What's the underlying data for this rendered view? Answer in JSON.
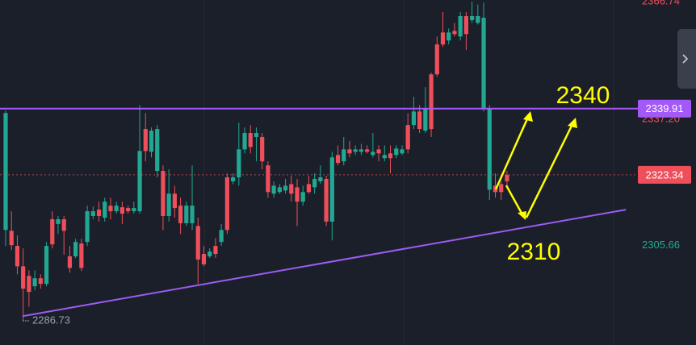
{
  "chart_data": {
    "type": "candlestick",
    "up_color": "#ef4f5b",
    "down_color": "#22a892",
    "ylim": [
      2280.68,
      2367.14
    ],
    "candles": [
      [
        2338.8,
        2339.4,
        2305.5,
        2309.5
      ],
      [
        2305.7,
        2314.2,
        2304.5,
        2309.3
      ],
      [
        2300.4,
        2308.1,
        2298.4,
        2305.5
      ],
      [
        2294.8,
        2304.9,
        2286.73,
        2300.4
      ],
      [
        2294.0,
        2299.4,
        2290.3,
        2298.0
      ],
      [
        2297.4,
        2299.4,
        2294.4,
        2295.4
      ],
      [
        2296.0,
        2298.4,
        2294.8,
        2297.4
      ],
      [
        2305.5,
        2306.5,
        2295.4,
        2296.0
      ],
      [
        2305.9,
        2314.2,
        2304.9,
        2312.2
      ],
      [
        2312.2,
        2313.0,
        2308.5,
        2311.0
      ],
      [
        2309.3,
        2313.0,
        2303.3,
        2312.2
      ],
      [
        2300.0,
        2305.5,
        2298.8,
        2302.9
      ],
      [
        2306.5,
        2307.3,
        2302.5,
        2302.9
      ],
      [
        2300.0,
        2307.3,
        2299.2,
        2306.1
      ],
      [
        2314.2,
        2315.6,
        2305.5,
        2306.5
      ],
      [
        2314.2,
        2315.4,
        2312.2,
        2313.0
      ],
      [
        2313.0,
        2316.6,
        2311.6,
        2314.6
      ],
      [
        2316.6,
        2317.6,
        2311.6,
        2312.6
      ],
      [
        2314.2,
        2317.6,
        2312.2,
        2315.6
      ],
      [
        2315.6,
        2316.6,
        2313.6,
        2314.2
      ],
      [
        2313.6,
        2316.6,
        2311.0,
        2315.2
      ],
      [
        2314.2,
        2315.6,
        2313.6,
        2315.0
      ],
      [
        2315.0,
        2316.6,
        2313.6,
        2314.2
      ],
      [
        2329.3,
        2340.8,
        2313.6,
        2314.2
      ],
      [
        2329.3,
        2338.8,
        2326.7,
        2334.8
      ],
      [
        2334.4,
        2335.2,
        2327.7,
        2329.1
      ],
      [
        2334.8,
        2335.8,
        2322.7,
        2324.3
      ],
      [
        2313.0,
        2325.7,
        2309.5,
        2324.3
      ],
      [
        2318.6,
        2324.7,
        2311.6,
        2313.0
      ],
      [
        2315.0,
        2320.6,
        2312.6,
        2318.6
      ],
      [
        2311.2,
        2317.6,
        2308.5,
        2315.6
      ],
      [
        2315.6,
        2316.6,
        2310.5,
        2311.2
      ],
      [
        2315.6,
        2325.7,
        2309.5,
        2311.2
      ],
      [
        2302.1,
        2312.6,
        2296.0,
        2310.5
      ],
      [
        2300.9,
        2305.5,
        2300.4,
        2303.5
      ],
      [
        2304.1,
        2304.9,
        2302.5,
        2302.9
      ],
      [
        2303.5,
        2307.5,
        2302.5,
        2305.5
      ],
      [
        2309.5,
        2311.0,
        2305.5,
        2306.5
      ],
      [
        2309.5,
        2323.7,
        2308.5,
        2322.7
      ],
      [
        2322.7,
        2323.7,
        2321.0,
        2321.7
      ],
      [
        2329.7,
        2336.4,
        2320.6,
        2322.7
      ],
      [
        2333.8,
        2335.2,
        2328.7,
        2329.7
      ],
      [
        2330.3,
        2335.8,
        2328.7,
        2333.8
      ],
      [
        2333.8,
        2335.2,
        2326.7,
        2332.8
      ],
      [
        2326.7,
        2333.8,
        2324.7,
        2332.8
      ],
      [
        2319.0,
        2326.7,
        2317.6,
        2325.7
      ],
      [
        2320.6,
        2321.7,
        2317.6,
        2318.6
      ],
      [
        2320.2,
        2321.0,
        2318.6,
        2319.0
      ],
      [
        2320.6,
        2322.3,
        2318.6,
        2319.4
      ],
      [
        2318.6,
        2323.1,
        2316.6,
        2321.0
      ],
      [
        2316.6,
        2322.3,
        2310.5,
        2320.2
      ],
      [
        2319.0,
        2320.6,
        2315.6,
        2316.6
      ],
      [
        2319.0,
        2323.1,
        2318.6,
        2321.0
      ],
      [
        2322.3,
        2323.7,
        2318.6,
        2320.2
      ],
      [
        2322.7,
        2325.7,
        2321.0,
        2321.7
      ],
      [
        2311.6,
        2323.1,
        2310.5,
        2322.3
      ],
      [
        2327.7,
        2329.1,
        2306.9,
        2311.6
      ],
      [
        2326.3,
        2330.7,
        2325.7,
        2328.3
      ],
      [
        2329.7,
        2332.8,
        2325.7,
        2326.7
      ],
      [
        2328.7,
        2331.8,
        2327.7,
        2329.7
      ],
      [
        2329.7,
        2330.7,
        2328.3,
        2329.1
      ],
      [
        2329.7,
        2331.1,
        2328.3,
        2329.1
      ],
      [
        2329.1,
        2330.7,
        2328.7,
        2329.7
      ],
      [
        2329.1,
        2333.8,
        2327.7,
        2328.3
      ],
      [
        2328.7,
        2330.7,
        2326.7,
        2329.7
      ],
      [
        2328.3,
        2330.7,
        2326.7,
        2327.5
      ],
      [
        2327.5,
        2330.7,
        2323.7,
        2328.7
      ],
      [
        2329.9,
        2330.7,
        2327.5,
        2328.3
      ],
      [
        2329.7,
        2330.7,
        2328.3,
        2328.7
      ],
      [
        2329.7,
        2338.8,
        2328.7,
        2335.8
      ],
      [
        2339.2,
        2342.9,
        2334.8,
        2335.8
      ],
      [
        2334.8,
        2340.8,
        2333.8,
        2339.2
      ],
      [
        2339.8,
        2345.3,
        2333.8,
        2334.4
      ],
      [
        2334.8,
        2348.9,
        2332.8,
        2348.5
      ],
      [
        2348.5,
        2358.0,
        2347.9,
        2356.0
      ],
      [
        2356.0,
        2364.1,
        2355.4,
        2359.0
      ],
      [
        2359.0,
        2360.0,
        2356.0,
        2357.0
      ],
      [
        2358.6,
        2361.4,
        2358.0,
        2359.4
      ],
      [
        2363.1,
        2364.1,
        2357.0,
        2358.0
      ],
      [
        2358.6,
        2364.1,
        2354.6,
        2363.1
      ],
      [
        2363.1,
        2366.74,
        2361.4,
        2362.1
      ],
      [
        2363.1,
        2366.0,
        2361.0,
        2361.4
      ],
      [
        2362.7,
        2366.5,
        2339.2,
        2339.8
      ],
      [
        2339.8,
        2340.8,
        2317.0,
        2319.6
      ],
      [
        2319.0,
        2323.7,
        2317.6,
        2320.6
      ],
      [
        2319.0,
        2321.7,
        2317.0,
        2321.0
      ],
      [
        2321.7,
        2324.3,
        2320.6,
        2323.34
      ]
    ],
    "level_line": {
      "value": 2339.91,
      "color": "#a259f7"
    },
    "last_price": {
      "value": 2323.34,
      "color": "#ef4f5b"
    },
    "trendline": {
      "start": [
        2.9,
        2287.9
      ],
      "end": [
        106.4,
        2314.6
      ],
      "color": "#9b5cf0"
    },
    "axis_labels": [
      {
        "value": 2366.74,
        "color": "#ef4f5b"
      },
      {
        "value": 2337.2,
        "label": "2337.20",
        "color": "#ef4f5b"
      },
      {
        "value": 2305.66,
        "color": "#22a892"
      }
    ],
    "low_label": 2286.73,
    "annotations": [
      "2340",
      "2310"
    ],
    "annotation_color": "#ffff00"
  }
}
